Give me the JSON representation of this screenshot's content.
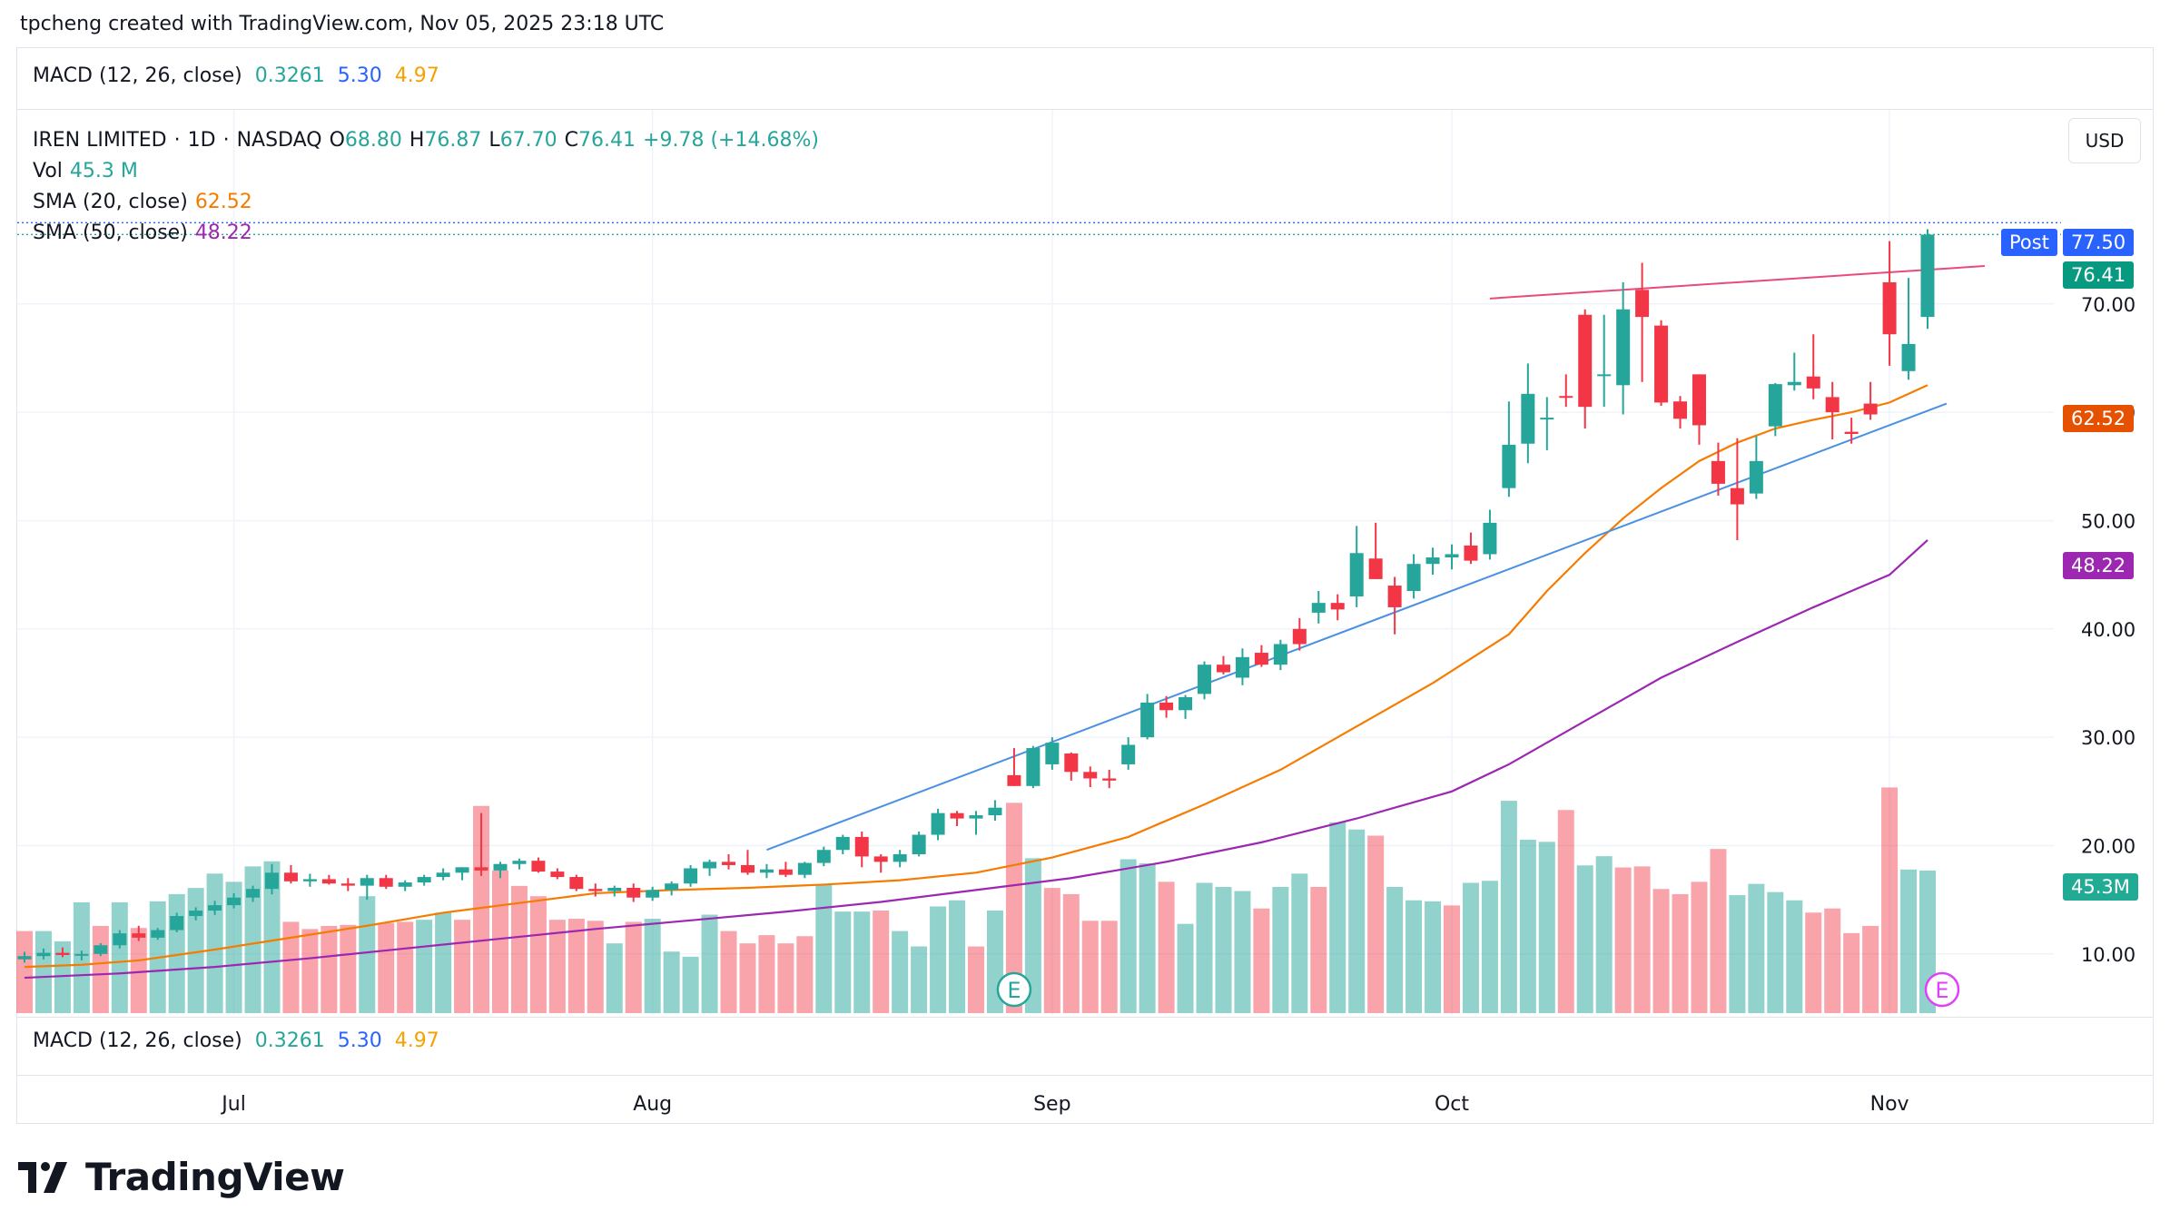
{
  "header": {
    "caption": "tpcheng created with TradingView.com, Nov 05, 2025 23:18 UTC"
  },
  "macd": {
    "label": "MACD (12, 26, close)",
    "v1": "0.3261",
    "v2": "5.30",
    "v3": "4.97"
  },
  "legend": {
    "symbol": "IREN LIMITED",
    "sep": "·",
    "interval": "1D",
    "exchange": "NASDAQ",
    "o_label": "O",
    "o": "68.80",
    "h_label": "H",
    "h": "76.87",
    "l_label": "L",
    "l": "67.70",
    "c_label": "C",
    "c": "76.41",
    "change": "+9.78 (+14.68%)",
    "vol_label": "Vol",
    "vol": "45.3 M",
    "sma20_label": "SMA (20, close)",
    "sma20": "62.52",
    "sma50_label": "SMA (50, close)",
    "sma50": "48.22"
  },
  "currency_button": "USD",
  "price_tags": {
    "post_label": "Post",
    "post": "77.50",
    "last": "76.41",
    "sma20": "62.52",
    "sma50": "48.22",
    "vol": "45.3M"
  },
  "colors": {
    "up": "#26a69a",
    "down": "#f23645",
    "sma20": "#f57c00",
    "sma50": "#9c27b0",
    "trend_lower": "#2962ff",
    "trend_upper": "#e91e63",
    "post": "#2962ff",
    "vol_up": "#26a69a",
    "vol_down": "#f23645",
    "earnings": "#e040fb"
  },
  "brand": {
    "name": "TradingView",
    "logo": "tradingview-logo-icon"
  },
  "chart_data": {
    "type": "candlestick",
    "symbol": "IREN LIMITED",
    "currency": "USD",
    "price_ticks": [
      "70.00",
      "60.00",
      "50.00",
      "40.00",
      "30.00",
      "20.00",
      "10.00"
    ],
    "ylim": [
      4.2,
      88
    ],
    "x_ticks": [
      {
        "label": "Jul",
        "index": 11
      },
      {
        "label": "Aug",
        "index": 33
      },
      {
        "label": "Sep",
        "index": 54
      },
      {
        "label": "Oct",
        "index": 75
      },
      {
        "label": "Nov",
        "index": 98
      }
    ],
    "ohlc": [
      [
        9.5,
        10.2,
        9.2,
        9.8
      ],
      [
        9.8,
        10.5,
        9.5,
        10.1
      ],
      [
        10.1,
        10.6,
        9.7,
        9.9
      ],
      [
        9.9,
        10.3,
        9.4,
        10.0
      ],
      [
        10.0,
        11.0,
        9.8,
        10.8
      ],
      [
        10.8,
        12.2,
        10.5,
        11.9
      ],
      [
        11.9,
        12.6,
        11.2,
        11.5
      ],
      [
        11.5,
        12.4,
        11.3,
        12.2
      ],
      [
        12.2,
        13.8,
        12.0,
        13.5
      ],
      [
        13.5,
        14.3,
        13.1,
        14.0
      ],
      [
        14.0,
        14.9,
        13.6,
        14.5
      ],
      [
        14.5,
        15.6,
        14.2,
        15.2
      ],
      [
        15.2,
        16.3,
        14.8,
        16.0
      ],
      [
        16.0,
        18.3,
        15.5,
        17.5
      ],
      [
        17.5,
        18.2,
        16.5,
        16.7
      ],
      [
        16.7,
        17.4,
        16.2,
        16.9
      ],
      [
        16.9,
        17.3,
        16.4,
        16.5
      ],
      [
        16.5,
        17.0,
        15.8,
        16.3
      ],
      [
        16.3,
        17.3,
        15.0,
        17.0
      ],
      [
        17.0,
        17.3,
        16.0,
        16.2
      ],
      [
        16.2,
        16.8,
        15.8,
        16.6
      ],
      [
        16.6,
        17.3,
        16.3,
        17.1
      ],
      [
        17.1,
        17.9,
        16.8,
        17.5
      ],
      [
        17.5,
        18.0,
        16.8,
        18.0
      ],
      [
        18.0,
        23.0,
        17.2,
        17.7
      ],
      [
        17.7,
        18.5,
        17.0,
        18.3
      ],
      [
        18.3,
        18.8,
        17.8,
        18.6
      ],
      [
        18.6,
        18.9,
        17.5,
        17.6
      ],
      [
        17.6,
        17.9,
        16.9,
        17.1
      ],
      [
        17.1,
        17.3,
        15.8,
        16.0
      ],
      [
        16.0,
        16.5,
        15.3,
        15.8
      ],
      [
        15.8,
        16.3,
        15.3,
        16.1
      ],
      [
        16.1,
        16.5,
        14.8,
        15.2
      ],
      [
        15.2,
        16.2,
        14.9,
        15.9
      ],
      [
        15.9,
        16.7,
        15.4,
        16.5
      ],
      [
        16.5,
        18.2,
        16.2,
        17.9
      ],
      [
        17.9,
        18.7,
        17.2,
        18.5
      ],
      [
        18.5,
        19.2,
        17.8,
        18.2
      ],
      [
        18.2,
        19.6,
        17.3,
        17.5
      ],
      [
        17.5,
        18.3,
        17.0,
        17.8
      ],
      [
        17.8,
        18.5,
        17.1,
        17.3
      ],
      [
        17.3,
        18.5,
        17.0,
        18.4
      ],
      [
        18.4,
        19.9,
        18.1,
        19.6
      ],
      [
        19.6,
        21.0,
        19.2,
        20.8
      ],
      [
        20.8,
        21.3,
        18.0,
        19.0
      ],
      [
        19.0,
        19.2,
        17.5,
        18.5
      ],
      [
        18.5,
        19.6,
        18.0,
        19.2
      ],
      [
        19.2,
        21.3,
        19.0,
        21.0
      ],
      [
        21.0,
        23.4,
        20.5,
        23.0
      ],
      [
        23.0,
        23.2,
        21.8,
        22.5
      ],
      [
        22.5,
        23.2,
        21.0,
        22.8
      ],
      [
        22.8,
        24.2,
        22.3,
        23.5
      ],
      [
        26.5,
        29.0,
        25.5,
        25.5
      ],
      [
        25.5,
        29.2,
        25.3,
        29.0
      ],
      [
        27.5,
        30.0,
        27.0,
        29.5
      ],
      [
        28.5,
        28.6,
        26.0,
        26.8
      ],
      [
        26.8,
        27.3,
        25.4,
        26.2
      ],
      [
        26.2,
        27.0,
        25.3,
        26.0
      ],
      [
        27.5,
        30.0,
        27.0,
        29.3
      ],
      [
        30.0,
        34.0,
        29.8,
        33.2
      ],
      [
        33.2,
        33.8,
        31.8,
        32.5
      ],
      [
        32.5,
        33.9,
        31.7,
        33.7
      ],
      [
        34.0,
        37.0,
        33.5,
        36.7
      ],
      [
        36.7,
        37.5,
        35.8,
        36.0
      ],
      [
        35.5,
        38.2,
        34.8,
        37.4
      ],
      [
        37.8,
        38.5,
        36.5,
        36.7
      ],
      [
        36.7,
        39.0,
        36.2,
        38.6
      ],
      [
        40.0,
        41.0,
        38.0,
        38.6
      ],
      [
        41.5,
        43.5,
        40.5,
        42.4
      ],
      [
        42.4,
        43.2,
        40.8,
        41.8
      ],
      [
        43.0,
        49.5,
        42.0,
        47.0
      ],
      [
        46.5,
        49.8,
        44.6,
        44.6
      ],
      [
        44.0,
        44.8,
        39.5,
        42.0
      ],
      [
        43.5,
        46.9,
        42.8,
        46.0
      ],
      [
        46.0,
        47.5,
        45.0,
        46.6
      ],
      [
        46.6,
        47.8,
        45.5,
        46.9
      ],
      [
        47.7,
        48.9,
        46.0,
        46.3
      ],
      [
        46.9,
        51.0,
        46.4,
        49.8
      ],
      [
        53.0,
        61.0,
        52.2,
        57.0
      ],
      [
        57.1,
        64.5,
        55.3,
        61.7
      ],
      [
        59.5,
        61.4,
        56.5,
        59.5
      ],
      [
        61.5,
        63.5,
        60.5,
        61.4
      ],
      [
        69.0,
        69.5,
        58.5,
        60.5
      ],
      [
        63.5,
        69.0,
        60.5,
        63.5
      ],
      [
        62.5,
        72.0,
        59.8,
        69.5
      ],
      [
        71.3,
        73.8,
        62.8,
        68.8
      ],
      [
        68.0,
        68.5,
        60.6,
        60.9
      ],
      [
        61.0,
        61.5,
        58.5,
        59.4
      ],
      [
        63.5,
        63.5,
        57.0,
        58.8
      ],
      [
        55.5,
        57.2,
        52.3,
        53.4
      ],
      [
        53.0,
        57.6,
        48.2,
        51.5
      ],
      [
        52.5,
        57.8,
        52.0,
        55.5
      ],
      [
        58.7,
        62.7,
        57.8,
        62.6
      ],
      [
        62.5,
        65.5,
        62.0,
        62.8
      ],
      [
        63.3,
        67.2,
        61.2,
        62.2
      ],
      [
        61.4,
        62.8,
        57.5,
        60.0
      ],
      [
        58.2,
        59.5,
        57.1,
        58.0
      ],
      [
        60.8,
        62.8,
        59.3,
        59.8
      ],
      [
        72.0,
        75.8,
        64.3,
        67.2
      ],
      [
        63.8,
        72.4,
        63.0,
        66.3
      ],
      [
        68.8,
        76.9,
        67.7,
        76.4
      ]
    ],
    "volume": [
      [
        8,
        0
      ],
      [
        8,
        1
      ],
      [
        7,
        1
      ],
      [
        10.8,
        1
      ],
      [
        8.5,
        0
      ],
      [
        10.8,
        1
      ],
      [
        8.3,
        0
      ],
      [
        10.9,
        1
      ],
      [
        11.6,
        1
      ],
      [
        12.2,
        1
      ],
      [
        13.6,
        1
      ],
      [
        12.8,
        1
      ],
      [
        14.3,
        1
      ],
      [
        14.8,
        1
      ],
      [
        8.9,
        0
      ],
      [
        8.2,
        0
      ],
      [
        8.5,
        0
      ],
      [
        8.6,
        0
      ],
      [
        11.4,
        1
      ],
      [
        8.8,
        0
      ],
      [
        8.9,
        0
      ],
      [
        9.1,
        1
      ],
      [
        9.8,
        1
      ],
      [
        9.1,
        0
      ],
      [
        20.2,
        0
      ],
      [
        13.9,
        0
      ],
      [
        12.4,
        0
      ],
      [
        11.4,
        0
      ],
      [
        9.1,
        0
      ],
      [
        9.2,
        0
      ],
      [
        9.0,
        0
      ],
      [
        6.8,
        1
      ],
      [
        8.9,
        0
      ],
      [
        9.2,
        1
      ],
      [
        6.0,
        1
      ],
      [
        5.5,
        1
      ],
      [
        9.6,
        1
      ],
      [
        8.0,
        0
      ],
      [
        6.8,
        0
      ],
      [
        7.6,
        0
      ],
      [
        6.8,
        0
      ],
      [
        7.5,
        0
      ],
      [
        12.5,
        1
      ],
      [
        9.9,
        1
      ],
      [
        9.9,
        1
      ],
      [
        10.0,
        0
      ],
      [
        8.0,
        1
      ],
      [
        6.5,
        1
      ],
      [
        10.4,
        1
      ],
      [
        11.0,
        1
      ],
      [
        6.5,
        0
      ],
      [
        10.0,
        1
      ],
      [
        20.5,
        0
      ],
      [
        15.1,
        1
      ],
      [
        12.2,
        0
      ],
      [
        11.6,
        0
      ],
      [
        9.0,
        0
      ],
      [
        9.0,
        0
      ],
      [
        15.0,
        1
      ],
      [
        14.6,
        1
      ],
      [
        12.8,
        0
      ],
      [
        8.7,
        1
      ],
      [
        12.7,
        1
      ],
      [
        12.3,
        1
      ],
      [
        11.9,
        1
      ],
      [
        10.2,
        0
      ],
      [
        12.3,
        1
      ],
      [
        13.6,
        1
      ],
      [
        12.3,
        0
      ],
      [
        18.6,
        1
      ],
      [
        17.9,
        1
      ],
      [
        17.3,
        0
      ],
      [
        12.3,
        1
      ],
      [
        11.0,
        1
      ],
      [
        10.9,
        1
      ],
      [
        10.5,
        0
      ],
      [
        12.7,
        1
      ],
      [
        12.9,
        1
      ],
      [
        20.7,
        1
      ],
      [
        16.9,
        1
      ],
      [
        16.7,
        1
      ],
      [
        19.8,
        0
      ],
      [
        14.4,
        1
      ],
      [
        15.3,
        1
      ],
      [
        14.2,
        0
      ],
      [
        14.3,
        0
      ],
      [
        12.1,
        0
      ],
      [
        11.6,
        0
      ],
      [
        12.8,
        0
      ],
      [
        16.0,
        0
      ],
      [
        11.5,
        1
      ],
      [
        12.6,
        1
      ],
      [
        11.8,
        1
      ],
      [
        11.0,
        1
      ],
      [
        9.8,
        0
      ],
      [
        10.2,
        0
      ],
      [
        7.8,
        0
      ],
      [
        8.5,
        0
      ],
      [
        22.0,
        0
      ],
      [
        14.0,
        1
      ],
      [
        13.9,
        1
      ]
    ],
    "sma20": [
      [
        0,
        8.8
      ],
      [
        3,
        9.0
      ],
      [
        6,
        9.4
      ],
      [
        10,
        10.4
      ],
      [
        14,
        11.5
      ],
      [
        18,
        12.6
      ],
      [
        22,
        13.8
      ],
      [
        26,
        14.7
      ],
      [
        30,
        15.6
      ],
      [
        34,
        15.9
      ],
      [
        38,
        16.1
      ],
      [
        42,
        16.4
      ],
      [
        46,
        16.8
      ],
      [
        50,
        17.5
      ],
      [
        54,
        18.9
      ],
      [
        58,
        20.8
      ],
      [
        62,
        23.8
      ],
      [
        66,
        27.0
      ],
      [
        70,
        31.0
      ],
      [
        74,
        35.0
      ],
      [
        78,
        39.5
      ],
      [
        80,
        43.5
      ],
      [
        82,
        47.0
      ],
      [
        84,
        50.2
      ],
      [
        86,
        53.0
      ],
      [
        88,
        55.5
      ],
      [
        90,
        57.2
      ],
      [
        92,
        58.5
      ],
      [
        94,
        59.3
      ],
      [
        96,
        60.0
      ],
      [
        98,
        60.9
      ],
      [
        100,
        62.5
      ]
    ],
    "sma50": [
      [
        0,
        7.8
      ],
      [
        5,
        8.2
      ],
      [
        10,
        8.8
      ],
      [
        15,
        9.6
      ],
      [
        20,
        10.5
      ],
      [
        25,
        11.4
      ],
      [
        30,
        12.3
      ],
      [
        35,
        13.1
      ],
      [
        40,
        13.9
      ],
      [
        45,
        14.8
      ],
      [
        50,
        15.9
      ],
      [
        55,
        17.0
      ],
      [
        60,
        18.5
      ],
      [
        65,
        20.3
      ],
      [
        70,
        22.5
      ],
      [
        75,
        25.0
      ],
      [
        78,
        27.5
      ],
      [
        82,
        31.5
      ],
      [
        86,
        35.5
      ],
      [
        90,
        38.8
      ],
      [
        94,
        42.0
      ],
      [
        98,
        45.0
      ],
      [
        100,
        48.2
      ]
    ],
    "trend_lower": [
      [
        39,
        19.6
      ],
      [
        101,
        60.8
      ]
    ],
    "trend_upper": [
      [
        77,
        70.5
      ],
      [
        103,
        73.5
      ]
    ],
    "post_price": 77.5,
    "last_price": 76.41,
    "earnings_markers": [
      52,
      100
    ]
  }
}
